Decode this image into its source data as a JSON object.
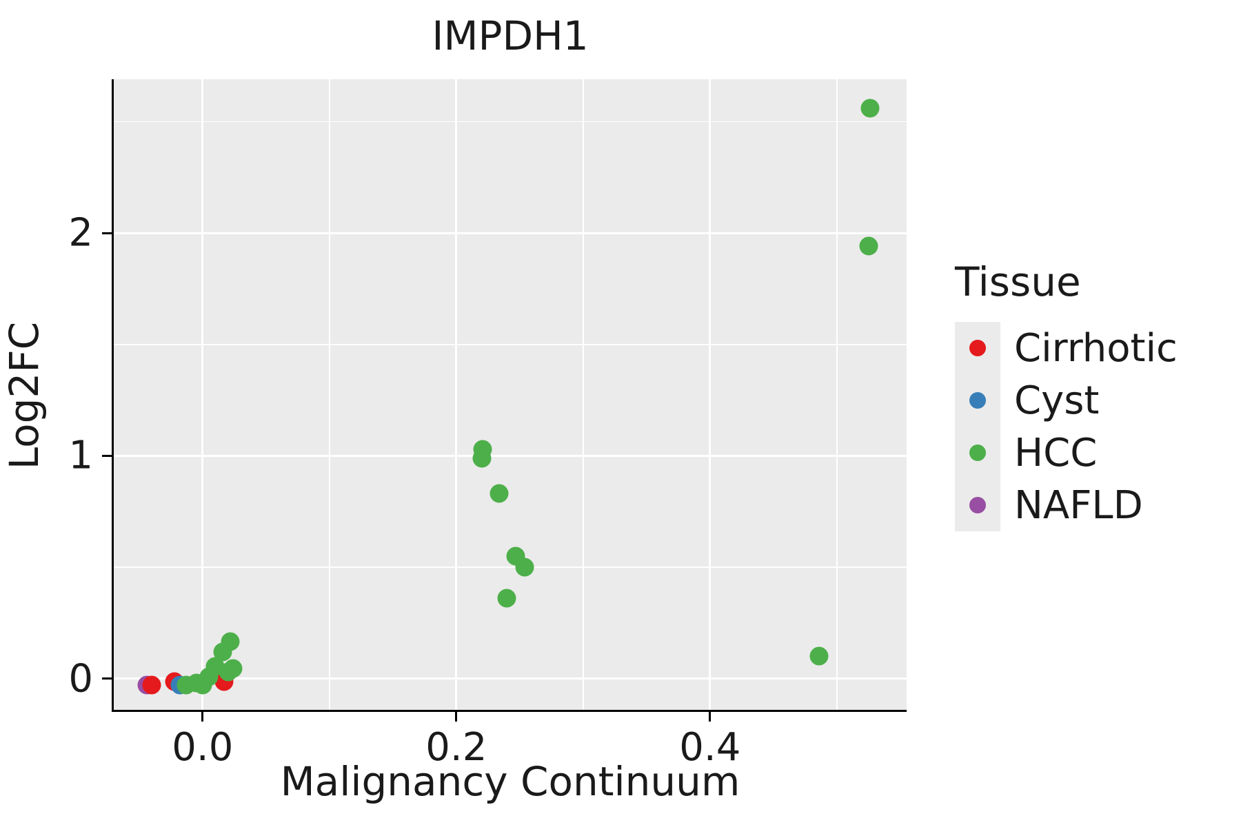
{
  "chart_data": {
    "type": "scatter",
    "title": "IMPDH1",
    "xlabel": "Malignancy Continuum",
    "ylabel": "Log2FC",
    "xlim": [
      -0.07,
      0.555
    ],
    "ylim": [
      -0.14,
      2.69
    ],
    "xtick_values": [
      0.0,
      0.2,
      0.4
    ],
    "xtick_labels": [
      "0.0",
      "0.2",
      "0.4"
    ],
    "ytick_values": [
      0,
      1,
      2
    ],
    "ytick_labels": [
      "0",
      "1",
      "2"
    ],
    "x_minor_gridlines": [
      0.1,
      0.3,
      0.5
    ],
    "y_minor_gridlines": [
      0.5,
      1.5,
      2.5
    ],
    "grid": "on",
    "panel_background": "#ebebeb",
    "gridline_color": "#ffffff",
    "legend_title": "Tissue",
    "legend_position": "right",
    "series": [
      {
        "name": "NAFLD",
        "color": "#984ea3",
        "points": [
          [
            -0.044,
            -0.028
          ]
        ]
      },
      {
        "name": "Cirrhotic",
        "color": "#e41a1c",
        "points": [
          [
            -0.04,
            -0.028
          ],
          [
            -0.022,
            -0.012
          ],
          [
            0.017,
            -0.012
          ]
        ]
      },
      {
        "name": "Cyst",
        "color": "#377eb8",
        "points": [
          [
            -0.018,
            -0.03
          ]
        ]
      },
      {
        "name": "HCC",
        "color": "#4daf4a",
        "points": [
          [
            0.526,
            2.56
          ],
          [
            0.525,
            1.94
          ],
          [
            0.221,
            1.03
          ],
          [
            0.22,
            0.99
          ],
          [
            0.234,
            0.83
          ],
          [
            0.247,
            0.55
          ],
          [
            0.254,
            0.5
          ],
          [
            0.24,
            0.36
          ],
          [
            0.486,
            0.1
          ],
          [
            0.022,
            0.165
          ],
          [
            0.016,
            0.12
          ],
          [
            0.01,
            0.055
          ],
          [
            0.024,
            0.045
          ],
          [
            0.02,
            0.03
          ],
          [
            0.005,
            0.01
          ],
          [
            -0.005,
            -0.02
          ],
          [
            -0.013,
            -0.028
          ],
          [
            0.0,
            -0.03
          ]
        ]
      }
    ],
    "legend_order": [
      "Cirrhotic",
      "Cyst",
      "HCC",
      "NAFLD"
    ]
  }
}
